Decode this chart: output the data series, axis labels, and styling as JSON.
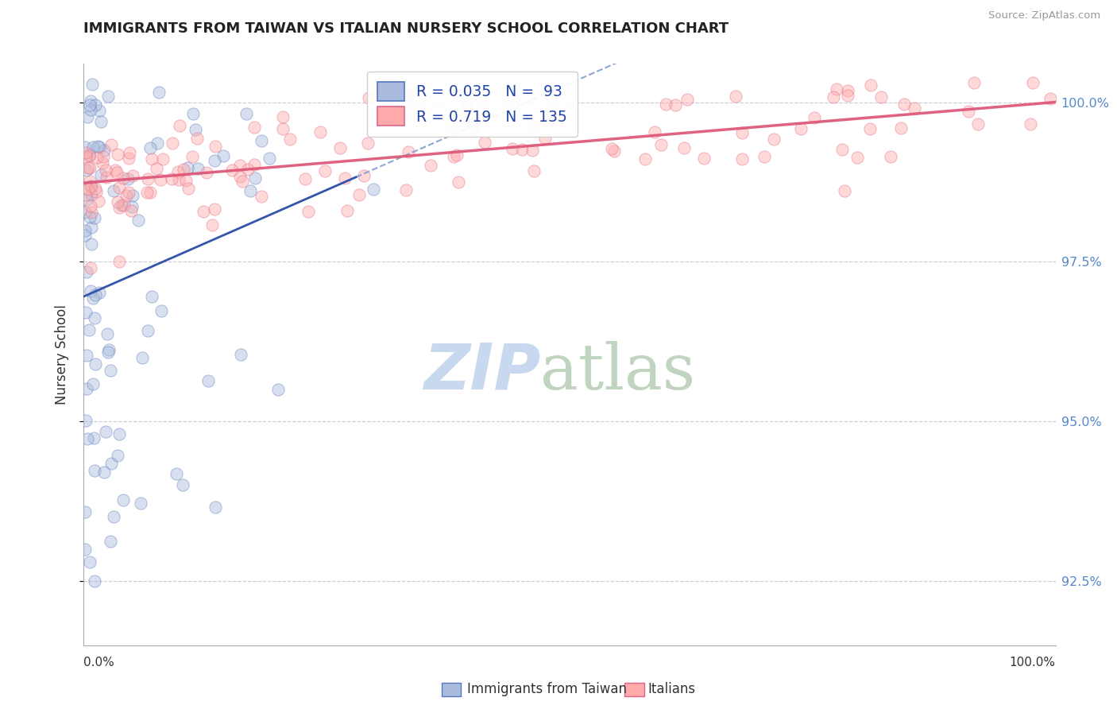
{
  "title": "IMMIGRANTS FROM TAIWAN VS ITALIAN NURSERY SCHOOL CORRELATION CHART",
  "source": "Source: ZipAtlas.com",
  "ylabel": "Nursery School",
  "ytick_labels": [
    "92.5%",
    "95.0%",
    "97.5%",
    "100.0%"
  ],
  "ytick_values": [
    92.5,
    95.0,
    97.5,
    100.0
  ],
  "xmin": 0.0,
  "xmax": 100.0,
  "ymin": 91.5,
  "ymax": 100.6,
  "legend_line1_r": "R = 0.035",
  "legend_line1_n": "N =  93",
  "legend_line2_r": "R = 0.719",
  "legend_line2_n": "N = 135",
  "blue_face": "#AABBDD",
  "blue_edge": "#5577BB",
  "pink_face": "#FFAAAA",
  "pink_edge": "#DD6688",
  "blue_solid_color": "#3355AA",
  "blue_dash_color": "#7799CC",
  "pink_solid_color": "#DD5577",
  "grid_color": "#CCCCDD",
  "grid_style": "--",
  "title_color": "#222222",
  "tick_color": "#5588CC",
  "source_color": "#999999",
  "watermark_zip_color": "#C8D8EE",
  "watermark_atlas_color": "#C0D4C0",
  "bottom_label1": "Immigrants from Taiwan",
  "bottom_label2": "Italians",
  "background": "#FFFFFF",
  "scatter_size": 120,
  "scatter_alpha": 0.45
}
